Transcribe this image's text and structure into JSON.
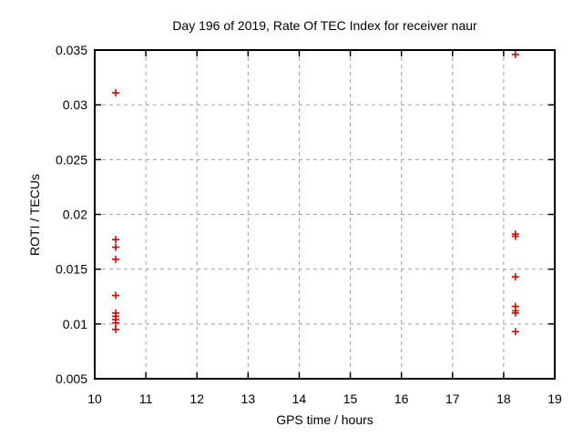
{
  "chart_data": {
    "type": "scatter",
    "title": "Day 196 of 2019, Rate Of TEC Index for receiver naur",
    "xlabel": "GPS time / hours",
    "ylabel": "ROTI / TECUs",
    "xlim": [
      10,
      19
    ],
    "ylim": [
      0.005,
      0.035
    ],
    "xticks": [
      10,
      11,
      12,
      13,
      14,
      15,
      16,
      17,
      18,
      19
    ],
    "xtick_labels": [
      "10",
      "11",
      "12",
      "13",
      "14",
      "15",
      "16",
      "17",
      "18",
      "19"
    ],
    "yticks": [
      0.005,
      0.01,
      0.015,
      0.02,
      0.025,
      0.03,
      0.035
    ],
    "ytick_labels": [
      "0.005",
      "0.01",
      "0.015",
      "0.02",
      "0.025",
      "0.03",
      "0.035"
    ],
    "grid": true,
    "legend": "none",
    "marker": "plus",
    "series": [
      {
        "name": "ROTI",
        "points": [
          {
            "x": 10.41,
            "y": 0.0311
          },
          {
            "x": 10.41,
            "y": 0.0177
          },
          {
            "x": 10.41,
            "y": 0.017
          },
          {
            "x": 10.41,
            "y": 0.0159
          },
          {
            "x": 10.41,
            "y": 0.0126
          },
          {
            "x": 10.41,
            "y": 0.011
          },
          {
            "x": 10.41,
            "y": 0.0107
          },
          {
            "x": 10.41,
            "y": 0.0104
          },
          {
            "x": 10.41,
            "y": 0.0101
          },
          {
            "x": 10.41,
            "y": 0.0095
          },
          {
            "x": 18.23,
            "y": 0.0346
          },
          {
            "x": 18.23,
            "y": 0.0182
          },
          {
            "x": 18.23,
            "y": 0.018
          },
          {
            "x": 18.23,
            "y": 0.0143
          },
          {
            "x": 18.23,
            "y": 0.0116
          },
          {
            "x": 18.23,
            "y": 0.0112
          },
          {
            "x": 18.23,
            "y": 0.011
          },
          {
            "x": 18.23,
            "y": 0.0093
          }
        ]
      }
    ]
  },
  "colors": {
    "marker": "#dd0000",
    "grid": "#9e9e9e",
    "border": "#000000",
    "background": "#ffffff"
  },
  "layout_hints": {
    "tick_direction": "in",
    "mirrored_ticks": true,
    "grid_style": "dashed"
  }
}
